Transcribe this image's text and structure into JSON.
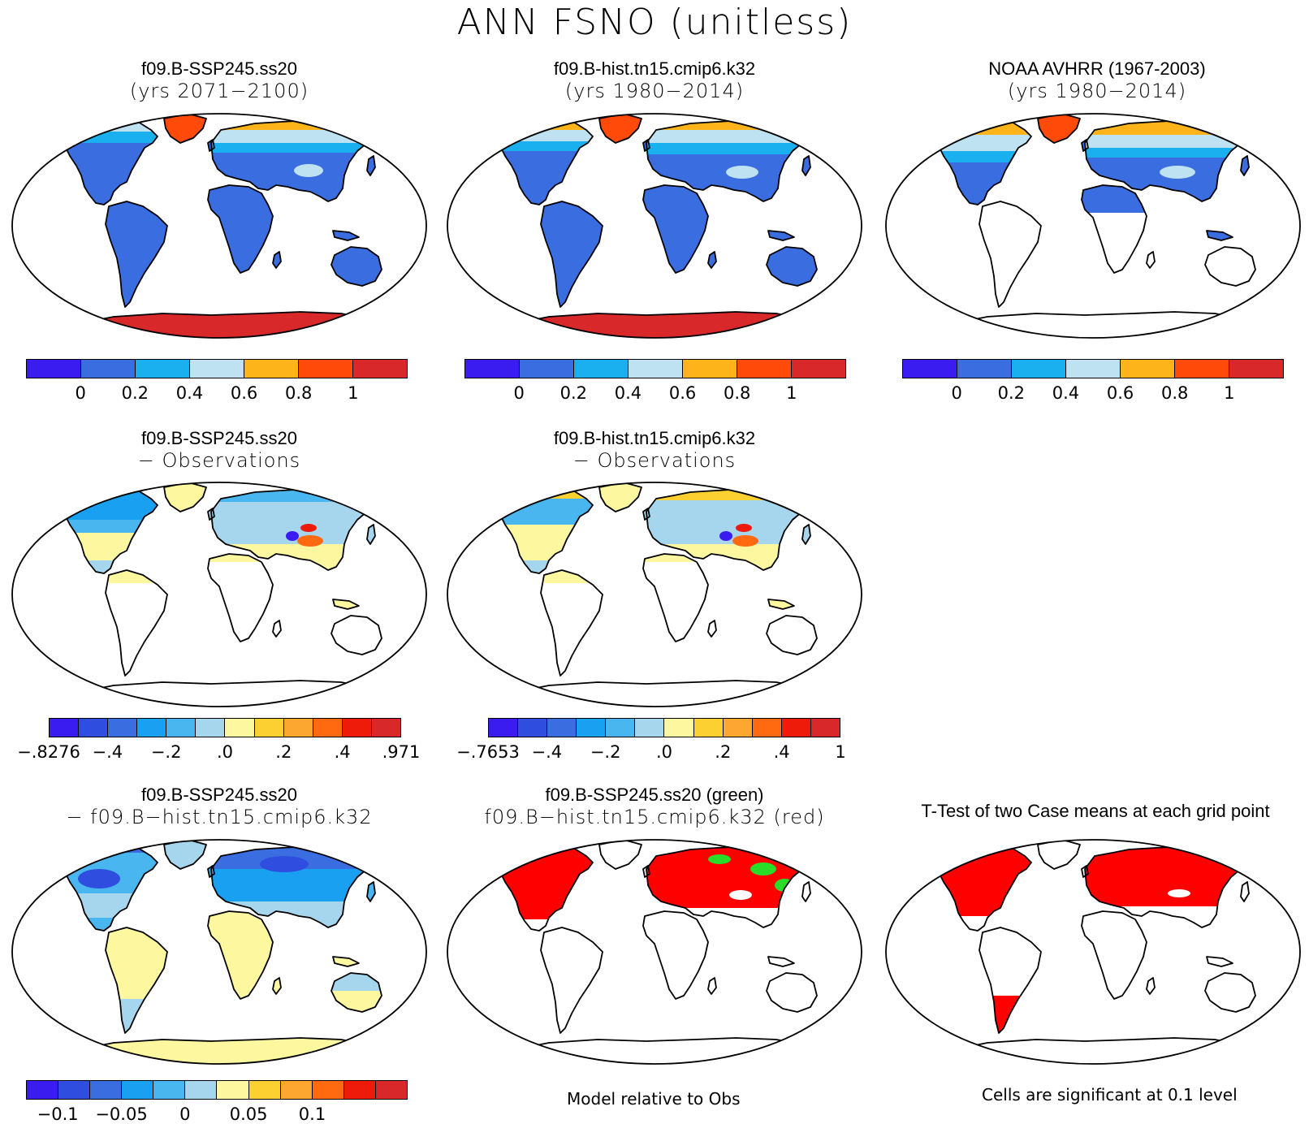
{
  "title": "ANN FSNO (unitless)",
  "colors": {
    "seq": [
      "#3a1cf0",
      "#3a6ee0",
      "#1ab0f0",
      "#bfe2f2",
      "#fcb41a",
      "#ff4a0a",
      "#d8282a"
    ],
    "div12": [
      "#3a1cf0",
      "#2f4ee0",
      "#3a6ee0",
      "#1aa0f0",
      "#4ab6f0",
      "#a6d6ee",
      "#fdf7a0",
      "#fcd030",
      "#fca830",
      "#ff6a10",
      "#ee1a0a",
      "#d8282a"
    ],
    "land_white": "#ffffff",
    "sig_red": "#ff0000",
    "sig_green": "#28dc28"
  },
  "panels": [
    {
      "id": "p1",
      "title1": "f09.B-SSP245.ss20",
      "title2": "(yrs 2071−2100)",
      "colorbar": {
        "labels": [
          "0",
          "0.2",
          "0.4",
          "0.6",
          "0.8",
          "1"
        ]
      }
    },
    {
      "id": "p2",
      "title1": "f09.B-hist.tn15.cmip6.k32",
      "title2": "(yrs 1980−2014)",
      "colorbar": {
        "labels": [
          "0",
          "0.2",
          "0.4",
          "0.6",
          "0.8",
          "1"
        ]
      }
    },
    {
      "id": "p3",
      "title1": "NOAA AVHRR (1967-2003)",
      "title2": "(yrs 1980−2014)",
      "colorbar": {
        "labels": [
          "0",
          "0.2",
          "0.4",
          "0.6",
          "0.8",
          "1"
        ]
      }
    },
    {
      "id": "p4",
      "title1": "f09.B-SSP245.ss20",
      "title2": "− Observations",
      "colorbar": {
        "labels": [
          "−.8276",
          "−.4",
          "−.2",
          ".0",
          ".2",
          ".4",
          ".971"
        ]
      }
    },
    {
      "id": "p5",
      "title1": "f09.B-hist.tn15.cmip6.k32",
      "title2": "− Observations",
      "colorbar": {
        "labels": [
          "−.7653",
          "−.4",
          "−.2",
          ".0",
          ".2",
          ".4",
          "1"
        ]
      }
    },
    {
      "id": "p6",
      "title1": "f09.B-SSP245.ss20",
      "title2": "− f09.B−hist.tn15.cmip6.k32",
      "colorbar": {
        "labels": [
          "−0.1",
          "−0.05",
          "0",
          "0.05",
          "0.1"
        ]
      }
    },
    {
      "id": "p7",
      "title1": "f09.B-SSP245.ss20 (green)",
      "title2": "f09.B−hist.tn15.cmip6.k32 (red)"
    },
    {
      "id": "p8",
      "title1": "T-Test of two Case means at each grid point",
      "title2": ""
    }
  ],
  "notes": {
    "model_rel": "Model relative to Obs",
    "sig": "Cells are significant at 0.1 level"
  }
}
